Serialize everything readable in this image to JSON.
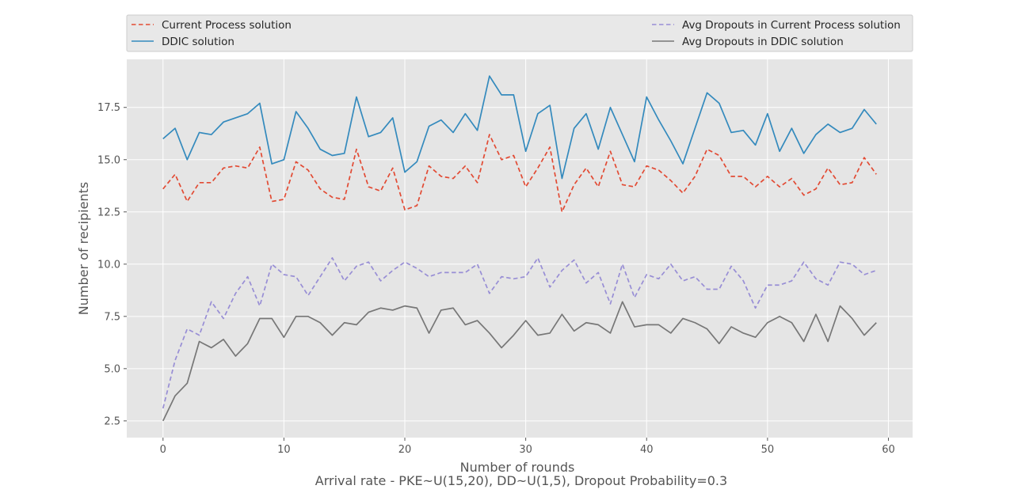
{
  "chart_data": {
    "type": "line",
    "title": "",
    "xlabel": "Number of rounds",
    "ylabel": "Number of recipients",
    "caption": "Arrival rate - PKE~U(15,20), DD~U(1,5), Dropout Probability=0.3",
    "xlim": [
      -3,
      62
    ],
    "ylim": [
      1.7,
      19.8
    ],
    "xticks": [
      0,
      10,
      20,
      30,
      40,
      50,
      60
    ],
    "yticks": [
      2.5,
      5.0,
      7.5,
      10.0,
      12.5,
      15.0,
      17.5
    ],
    "ytick_labels": [
      "2.5",
      "5.0",
      "7.5",
      "10.0",
      "12.5",
      "15.0",
      "17.5"
    ],
    "grid": true,
    "legend_position": "top, above plot, two columns",
    "series": [
      {
        "name": "Current Process solution",
        "color": "#E24A33",
        "style": "dashed",
        "values": [
          13.6,
          14.3,
          13.0,
          13.9,
          13.9,
          14.6,
          14.7,
          14.6,
          15.6,
          13.0,
          13.1,
          14.9,
          14.5,
          13.6,
          13.2,
          13.1,
          15.5,
          13.7,
          13.5,
          14.6,
          12.6,
          12.8,
          14.7,
          14.2,
          14.1,
          14.7,
          13.9,
          16.2,
          15.0,
          15.2,
          13.7,
          14.6,
          15.6,
          12.5,
          13.8,
          14.6,
          13.7,
          15.4,
          13.8,
          13.7,
          14.7,
          14.5,
          14.0,
          13.4,
          14.2,
          15.5,
          15.2,
          14.2,
          14.2,
          13.7,
          14.2,
          13.7,
          14.1,
          13.3,
          13.6,
          14.6,
          13.8,
          13.9,
          15.1,
          14.3
        ]
      },
      {
        "name": "DDIC solution",
        "color": "#348ABD",
        "style": "solid",
        "values": [
          16.0,
          16.5,
          15.0,
          16.3,
          16.2,
          16.8,
          17.0,
          17.2,
          17.7,
          14.8,
          15.0,
          17.3,
          16.5,
          15.5,
          15.2,
          15.3,
          18.0,
          16.1,
          16.3,
          17.0,
          14.4,
          14.9,
          16.6,
          16.9,
          16.3,
          17.2,
          16.4,
          19.0,
          18.1,
          18.1,
          15.4,
          17.2,
          17.6,
          14.1,
          16.5,
          17.2,
          15.5,
          17.5,
          16.2,
          14.9,
          18.0,
          16.9,
          15.9,
          14.8,
          16.5,
          18.2,
          17.7,
          16.3,
          16.4,
          15.7,
          17.2,
          15.4,
          16.5,
          15.3,
          16.2,
          16.7,
          16.3,
          16.5,
          17.4,
          16.7
        ]
      },
      {
        "name": "Avg Dropouts in Current Process solution",
        "color": "#988ED5",
        "style": "dashed",
        "values": [
          3.1,
          5.4,
          6.9,
          6.6,
          8.2,
          7.4,
          8.6,
          9.4,
          8.0,
          10.0,
          9.5,
          9.4,
          8.5,
          9.4,
          10.3,
          9.2,
          9.9,
          10.1,
          9.2,
          9.7,
          10.1,
          9.8,
          9.4,
          9.6,
          9.6,
          9.6,
          10.0,
          8.6,
          9.4,
          9.3,
          9.4,
          10.3,
          8.9,
          9.7,
          10.2,
          9.1,
          9.6,
          8.1,
          10.0,
          8.4,
          9.5,
          9.3,
          10.0,
          9.2,
          9.4,
          8.8,
          8.8,
          9.9,
          9.2,
          7.9,
          9.0,
          9.0,
          9.2,
          10.1,
          9.3,
          9.0,
          10.1,
          10.0,
          9.5,
          9.7
        ]
      },
      {
        "name": "Avg Dropouts in DDIC solution",
        "color": "#777777",
        "style": "solid",
        "values": [
          2.5,
          3.7,
          4.3,
          6.3,
          6.0,
          6.4,
          5.6,
          6.2,
          7.4,
          7.4,
          6.5,
          7.5,
          7.5,
          7.2,
          6.6,
          7.2,
          7.1,
          7.7,
          7.9,
          7.8,
          8.0,
          7.9,
          6.7,
          7.8,
          7.9,
          7.1,
          7.3,
          6.7,
          6.0,
          6.6,
          7.3,
          6.6,
          6.7,
          7.6,
          6.8,
          7.2,
          7.1,
          6.7,
          8.2,
          7.0,
          7.1,
          7.1,
          6.7,
          7.4,
          7.2,
          6.9,
          6.2,
          7.0,
          6.7,
          6.5,
          7.2,
          7.5,
          7.2,
          6.3,
          7.6,
          6.3,
          8.0,
          7.4,
          6.6,
          7.2
        ]
      }
    ]
  }
}
